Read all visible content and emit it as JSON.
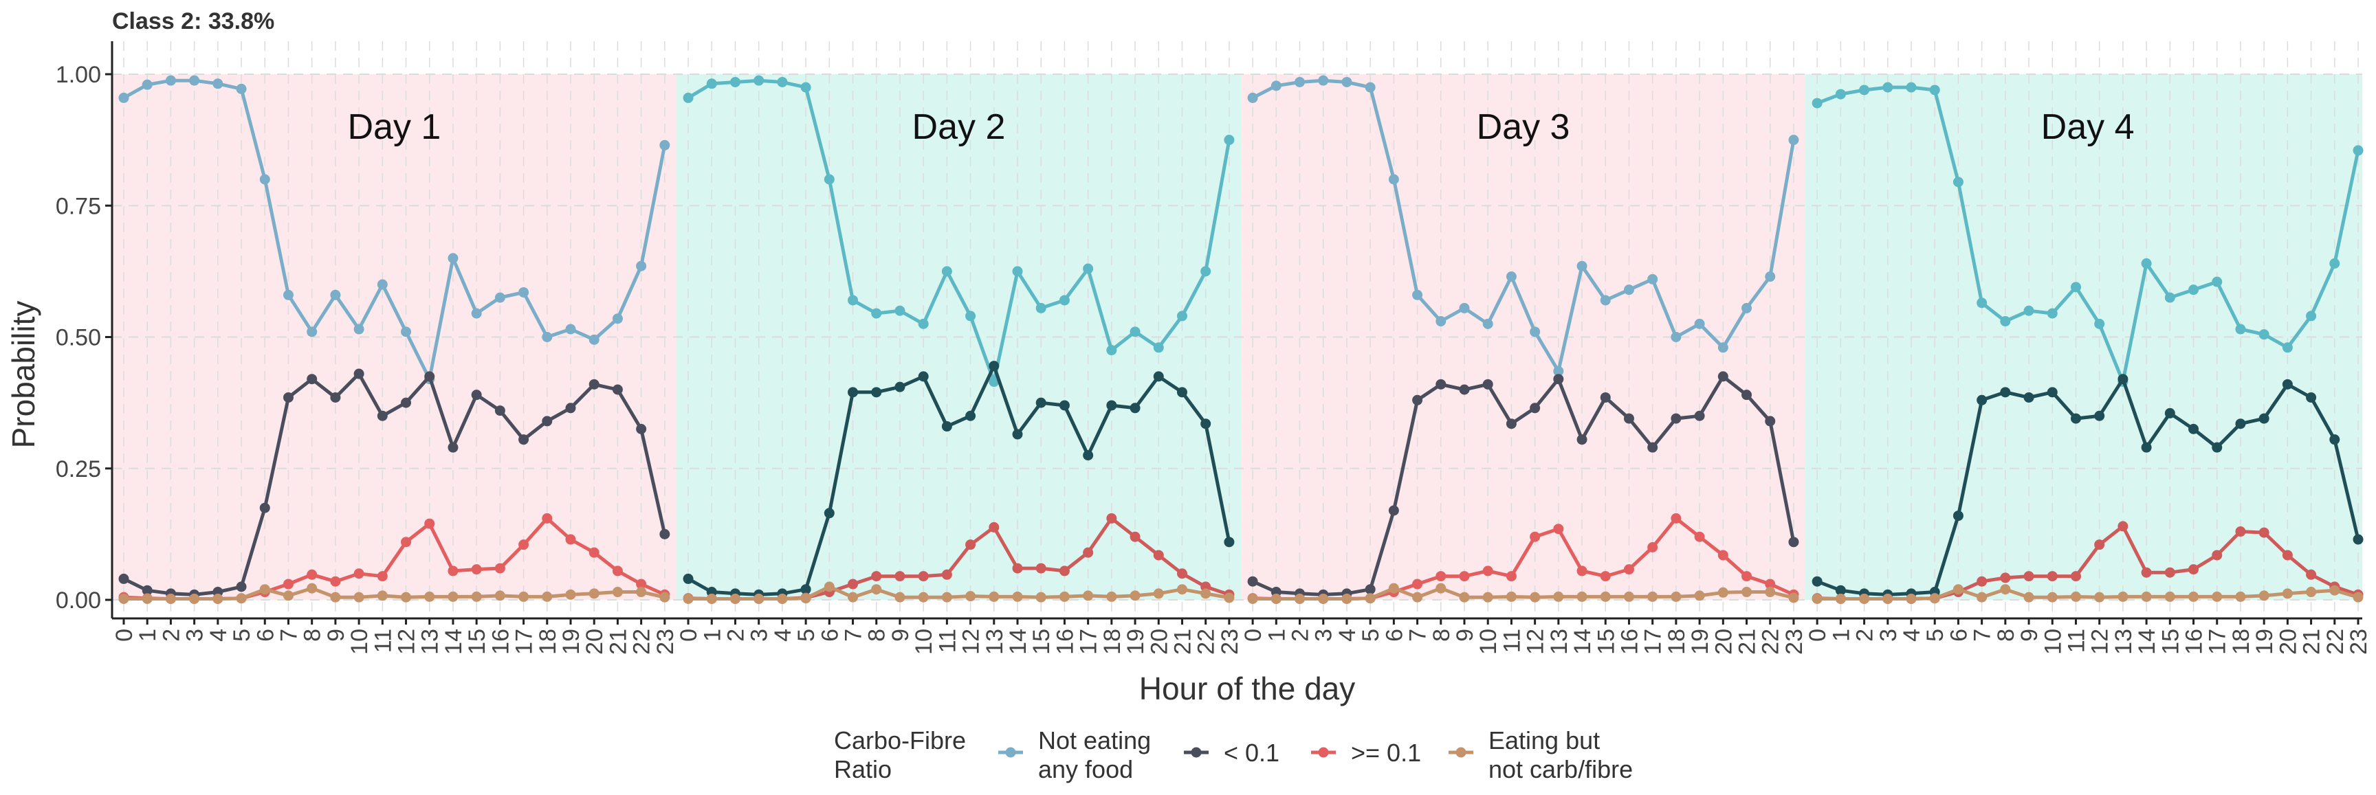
{
  "chart_data": {
    "type": "line",
    "title": "Class 2: 33.8%",
    "xlabel": "Hour of the day",
    "ylabel": "Probability",
    "ylim": [
      0,
      1
    ],
    "y_ticks": [
      "0.00",
      "0.25",
      "0.50",
      "0.75",
      "1.00"
    ],
    "x_ticks": [
      "0",
      "1",
      "2",
      "3",
      "4",
      "5",
      "6",
      "7",
      "8",
      "9",
      "10",
      "11",
      "12",
      "13",
      "14",
      "15",
      "16",
      "17",
      "18",
      "19",
      "20",
      "21",
      "22",
      "23"
    ],
    "days": [
      {
        "label": "Day 1",
        "band_color": "#fde8ec"
      },
      {
        "label": "Day 2",
        "band_color": "#d9f6f1"
      },
      {
        "label": "Day 3",
        "band_color": "#fde8ec"
      },
      {
        "label": "Day 4",
        "band_color": "#d9f6f1"
      }
    ],
    "legend_title_line1": "Carbo-Fibre",
    "legend_title_line2": "Ratio",
    "legend_position": "bottom",
    "grid": true,
    "series": [
      {
        "name_line1": "Not eating",
        "name_line2": "any food",
        "colors": [
          "#7aaec8",
          "#5bb8c4",
          "#7aaec8",
          "#5bb8c4"
        ],
        "values": [
          [
            0.955,
            0.98,
            0.988,
            0.988,
            0.982,
            0.972,
            0.8,
            0.58,
            0.51,
            0.58,
            0.515,
            0.6,
            0.51,
            0.42,
            0.65,
            0.545,
            0.575,
            0.585,
            0.5,
            0.515,
            0.495,
            0.535,
            0.635,
            0.865
          ],
          [
            0.955,
            0.982,
            0.985,
            0.988,
            0.985,
            0.975,
            0.8,
            0.57,
            0.545,
            0.55,
            0.525,
            0.625,
            0.54,
            0.415,
            0.625,
            0.555,
            0.57,
            0.63,
            0.475,
            0.51,
            0.48,
            0.54,
            0.625,
            0.875
          ],
          [
            0.955,
            0.978,
            0.985,
            0.988,
            0.985,
            0.975,
            0.8,
            0.58,
            0.53,
            0.555,
            0.525,
            0.615,
            0.51,
            0.435,
            0.635,
            0.57,
            0.59,
            0.61,
            0.5,
            0.525,
            0.48,
            0.555,
            0.615,
            0.875
          ],
          [
            0.945,
            0.962,
            0.97,
            0.975,
            0.975,
            0.97,
            0.795,
            0.565,
            0.53,
            0.55,
            0.545,
            0.595,
            0.525,
            0.415,
            0.64,
            0.575,
            0.59,
            0.605,
            0.515,
            0.505,
            0.48,
            0.54,
            0.64,
            0.855
          ]
        ]
      },
      {
        "name_line1": "< 0.1",
        "name_line2": "",
        "colors": [
          "#4a4e5c",
          "#1f4e56",
          "#4a4e5c",
          "#1f4e56"
        ],
        "values": [
          [
            0.04,
            0.018,
            0.012,
            0.01,
            0.015,
            0.025,
            0.175,
            0.385,
            0.42,
            0.385,
            0.43,
            0.35,
            0.375,
            0.425,
            0.29,
            0.39,
            0.36,
            0.305,
            0.34,
            0.365,
            0.41,
            0.4,
            0.325,
            0.125
          ],
          [
            0.04,
            0.015,
            0.012,
            0.01,
            0.012,
            0.02,
            0.165,
            0.395,
            0.395,
            0.405,
            0.425,
            0.33,
            0.35,
            0.445,
            0.315,
            0.375,
            0.37,
            0.275,
            0.37,
            0.365,
            0.425,
            0.395,
            0.335,
            0.11
          ],
          [
            0.035,
            0.015,
            0.012,
            0.01,
            0.012,
            0.02,
            0.17,
            0.38,
            0.41,
            0.4,
            0.41,
            0.335,
            0.365,
            0.42,
            0.305,
            0.385,
            0.345,
            0.29,
            0.345,
            0.35,
            0.425,
            0.39,
            0.34,
            0.11
          ],
          [
            0.035,
            0.018,
            0.012,
            0.01,
            0.012,
            0.015,
            0.16,
            0.38,
            0.395,
            0.385,
            0.395,
            0.345,
            0.35,
            0.42,
            0.29,
            0.355,
            0.325,
            0.29,
            0.335,
            0.345,
            0.41,
            0.385,
            0.305,
            0.115
          ]
        ]
      },
      {
        "name_line1": ">= 0.1",
        "name_line2": "",
        "colors": [
          "#e35e5e",
          "#cf5a5a",
          "#e35e5e",
          "#cf5a5a"
        ],
        "values": [
          [
            0.005,
            0.003,
            0.002,
            0.002,
            0.002,
            0.003,
            0.015,
            0.03,
            0.048,
            0.035,
            0.05,
            0.045,
            0.11,
            0.145,
            0.055,
            0.058,
            0.06,
            0.105,
            0.155,
            0.115,
            0.09,
            0.055,
            0.03,
            0.01
          ],
          [
            0.003,
            0.002,
            0.002,
            0.002,
            0.002,
            0.004,
            0.015,
            0.03,
            0.045,
            0.045,
            0.045,
            0.048,
            0.105,
            0.138,
            0.06,
            0.06,
            0.055,
            0.09,
            0.155,
            0.12,
            0.085,
            0.05,
            0.025,
            0.01
          ],
          [
            0.003,
            0.002,
            0.002,
            0.002,
            0.002,
            0.003,
            0.015,
            0.03,
            0.045,
            0.045,
            0.055,
            0.045,
            0.12,
            0.135,
            0.055,
            0.045,
            0.058,
            0.1,
            0.155,
            0.12,
            0.085,
            0.045,
            0.03,
            0.01
          ],
          [
            0.003,
            0.002,
            0.002,
            0.002,
            0.002,
            0.003,
            0.015,
            0.035,
            0.042,
            0.045,
            0.045,
            0.045,
            0.105,
            0.14,
            0.052,
            0.052,
            0.058,
            0.085,
            0.13,
            0.128,
            0.085,
            0.048,
            0.025,
            0.01
          ]
        ]
      },
      {
        "name_line1": "Eating but",
        "name_line2": "not carb/fibre",
        "colors": [
          "#c4936a",
          "#c4936a",
          "#c4936a",
          "#c4936a"
        ],
        "values": [
          [
            0.002,
            0.002,
            0.002,
            0.002,
            0.002,
            0.003,
            0.02,
            0.008,
            0.022,
            0.005,
            0.005,
            0.008,
            0.005,
            0.006,
            0.006,
            0.006,
            0.008,
            0.006,
            0.006,
            0.01,
            0.012,
            0.015,
            0.015,
            0.005
          ],
          [
            0.002,
            0.002,
            0.002,
            0.002,
            0.002,
            0.003,
            0.025,
            0.005,
            0.02,
            0.005,
            0.005,
            0.005,
            0.007,
            0.006,
            0.006,
            0.005,
            0.006,
            0.008,
            0.006,
            0.008,
            0.012,
            0.02,
            0.012,
            0.004
          ],
          [
            0.002,
            0.002,
            0.002,
            0.002,
            0.002,
            0.003,
            0.022,
            0.005,
            0.022,
            0.005,
            0.005,
            0.006,
            0.005,
            0.006,
            0.006,
            0.006,
            0.006,
            0.006,
            0.006,
            0.008,
            0.014,
            0.015,
            0.015,
            0.004
          ],
          [
            0.002,
            0.002,
            0.002,
            0.002,
            0.002,
            0.003,
            0.02,
            0.005,
            0.02,
            0.005,
            0.005,
            0.006,
            0.005,
            0.006,
            0.006,
            0.006,
            0.006,
            0.006,
            0.006,
            0.008,
            0.012,
            0.015,
            0.018,
            0.005
          ]
        ]
      }
    ]
  }
}
